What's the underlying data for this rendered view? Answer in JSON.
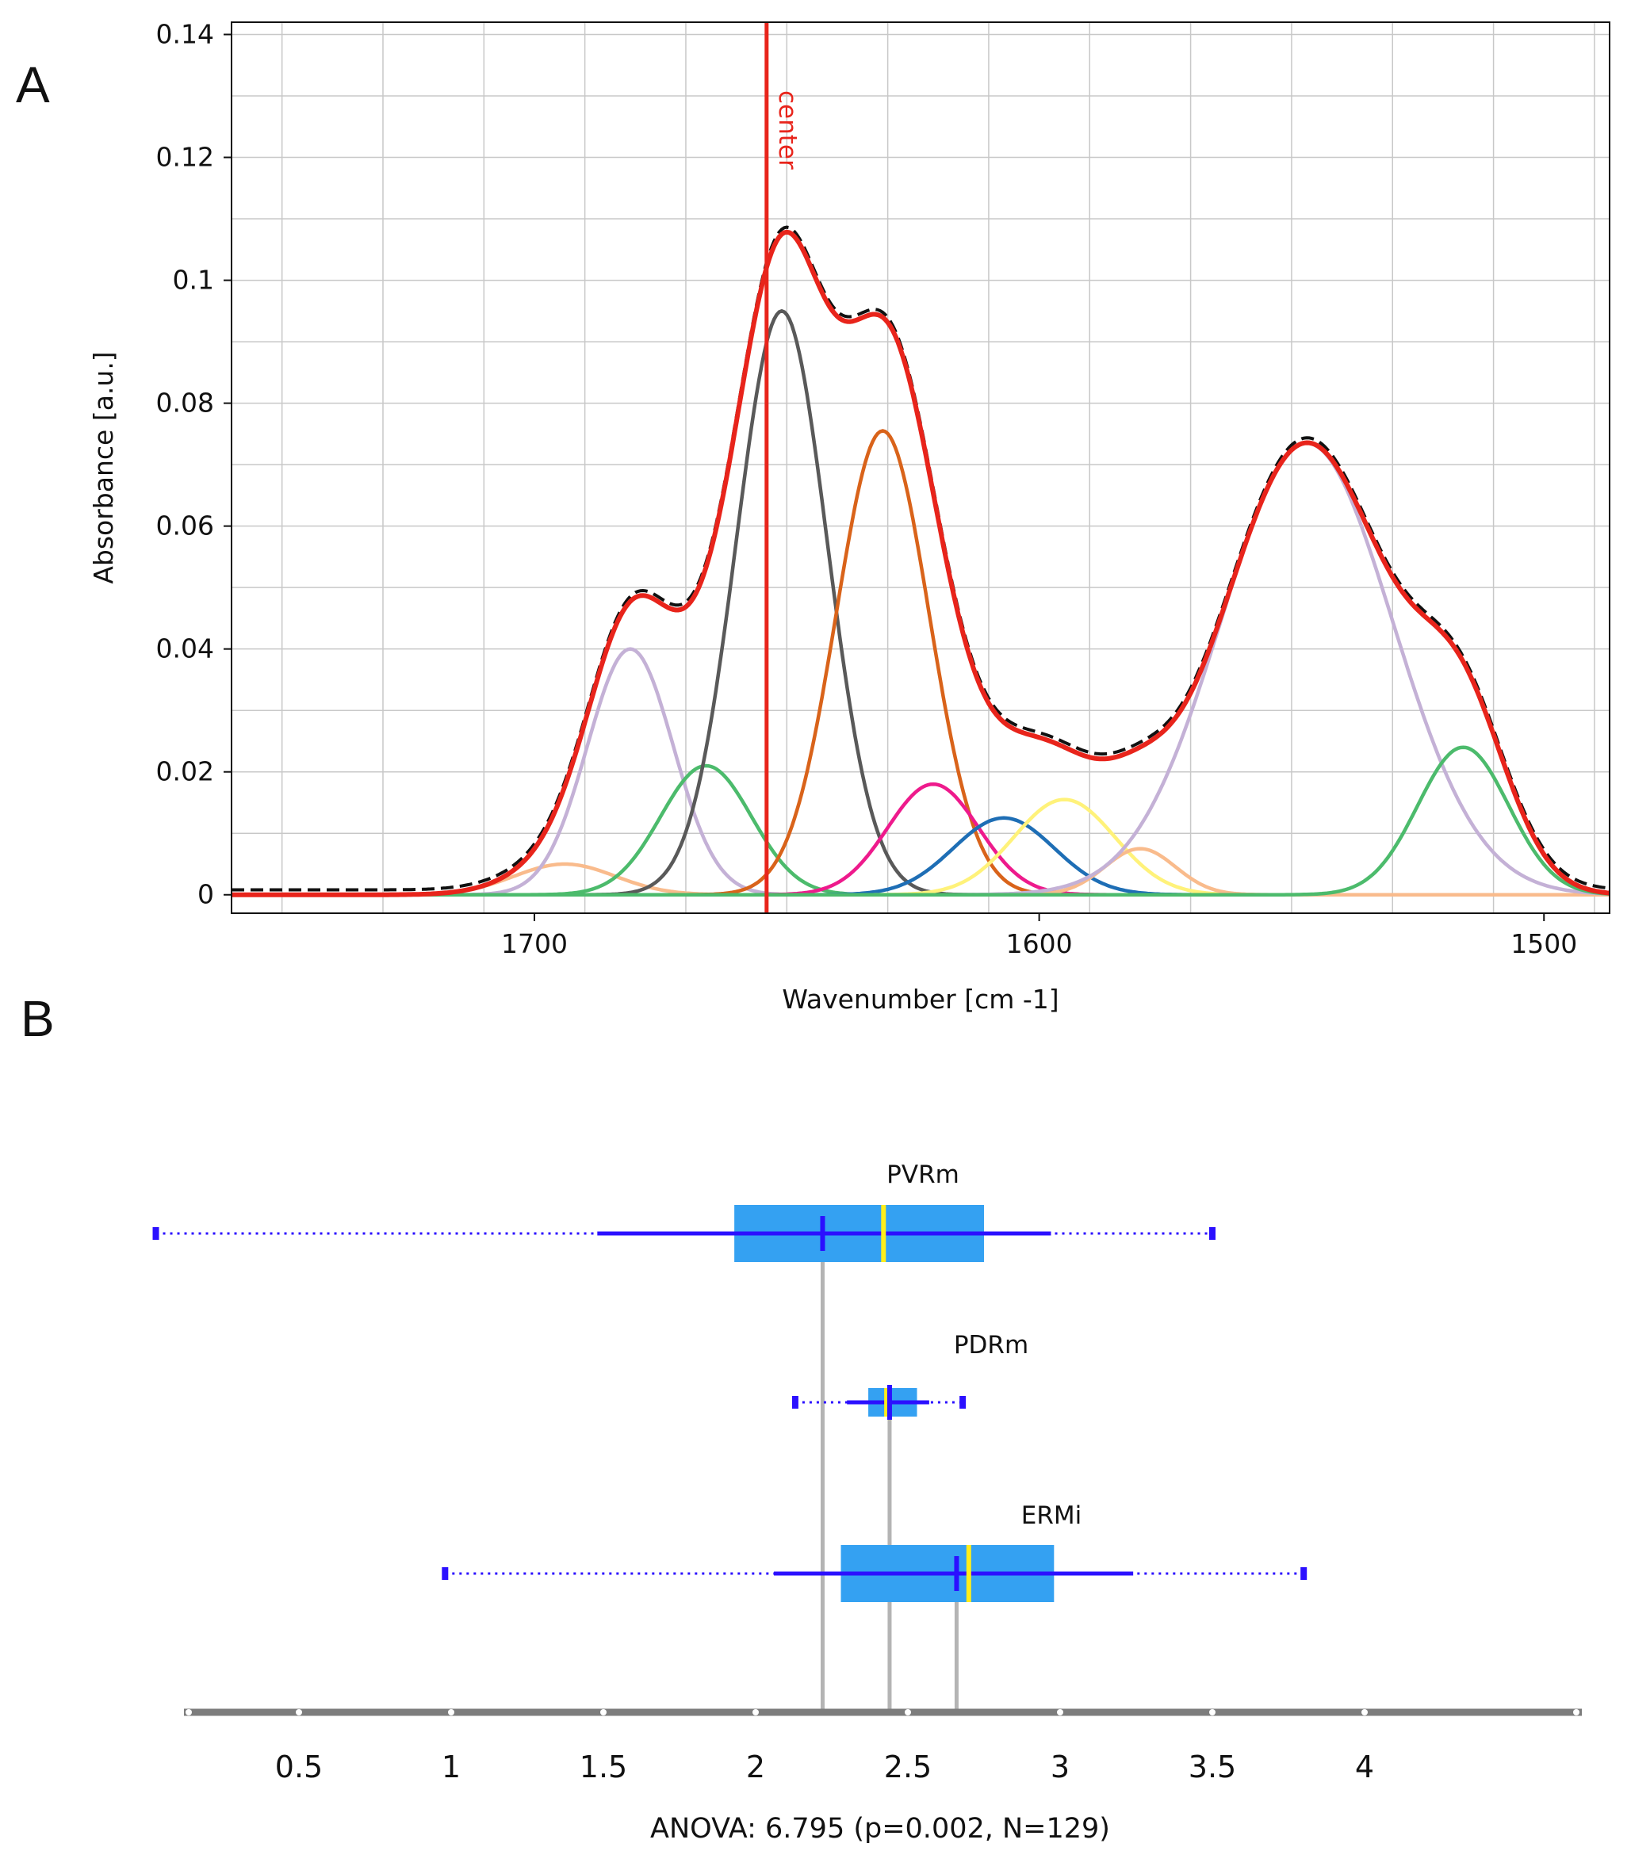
{
  "panels": {
    "a": "A",
    "b": "B"
  },
  "chart_data": [
    {
      "type": "line",
      "xlabel": "Wavenumber [cm -1]",
      "ylabel": "Absorbance [a.u.]",
      "xlim": [
        1760,
        1487
      ],
      "ylim": [
        -0.003,
        0.142
      ],
      "x_ticks": [
        1700,
        1600,
        1500
      ],
      "y_ticks": [
        0,
        0.02,
        0.04,
        0.06,
        0.08,
        0.1,
        0.12,
        0.14
      ],
      "y_tick_labels": [
        "0",
        "0.02",
        "0.04",
        "0.06",
        "0.08",
        "0.1",
        "0.12",
        "0.14"
      ],
      "grid": true,
      "annotation": {
        "label": "center",
        "x": 1654,
        "color": "#e8241b"
      },
      "components": [
        {
          "center": 1694,
          "amplitude": 0.005,
          "sigma": 10,
          "color": "#f9bb8c"
        },
        {
          "center": 1681,
          "amplitude": 0.04,
          "sigma": 8.5,
          "color": "#c4b1d6"
        },
        {
          "center": 1666,
          "amplitude": 0.021,
          "sigma": 9,
          "color": "#4cbb6c"
        },
        {
          "center": 1651,
          "amplitude": 0.095,
          "sigma": 9,
          "color": "#595959"
        },
        {
          "center": 1631,
          "amplitude": 0.0755,
          "sigma": 9.2,
          "color": "#d9631a"
        },
        {
          "center": 1621,
          "amplitude": 0.018,
          "sigma": 9,
          "color": "#ee1a8c"
        },
        {
          "center": 1607,
          "amplitude": 0.0125,
          "sigma": 10,
          "color": "#1e6eb5"
        },
        {
          "center": 1595,
          "amplitude": 0.0155,
          "sigma": 10,
          "color": "#fff27a"
        },
        {
          "center": 1580,
          "amplitude": 0.0075,
          "sigma": 7,
          "color": "#f9bb8c"
        },
        {
          "center": 1547,
          "amplitude": 0.0735,
          "sigma": 17,
          "color": "#c4b1d6"
        },
        {
          "center": 1516,
          "amplitude": 0.024,
          "sigma": 9,
          "color": "#4cbb6c"
        }
      ],
      "fit_color": "#e8241b",
      "measured_color": "#111111",
      "baseline_color": "#b3a324"
    },
    {
      "type": "box",
      "xlim": [
        0,
        4.6
      ],
      "x_ticks": [
        0.5,
        1,
        1.5,
        2,
        2.5,
        3,
        3.5,
        4
      ],
      "x_tick_labels": [
        "0.5",
        "1",
        "1.5",
        "2",
        "2.5",
        "3",
        "3.5",
        "4"
      ],
      "footnote": "ANOVA: 6.795 (p=0.002, N=129)",
      "groups": [
        {
          "name": "PVRm",
          "min": 0.03,
          "max": 3.5,
          "whisker_low": 1.48,
          "whisker_high": 2.97,
          "q1": 1.93,
          "q3": 2.75,
          "median": 2.42,
          "mean": 2.22
        },
        {
          "name": "PDRm",
          "min": 2.13,
          "max": 2.68,
          "whisker_low": 2.3,
          "whisker_high": 2.57,
          "q1": 2.37,
          "q3": 2.53,
          "median": 2.43,
          "mean": 2.44
        },
        {
          "name": "ERMi",
          "min": 0.98,
          "max": 3.8,
          "whisker_low": 2.06,
          "whisker_high": 3.24,
          "q1": 2.28,
          "q3": 2.98,
          "median": 2.7,
          "mean": 2.66
        }
      ]
    }
  ]
}
